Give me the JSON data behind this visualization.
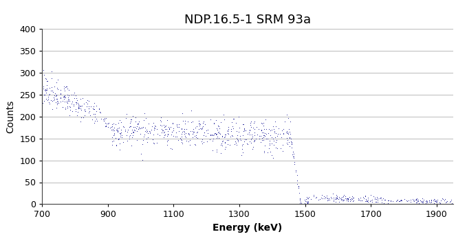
{
  "title": "NDP.16.5-1 SRM 93a",
  "xlabel": "Energy (keV)",
  "ylabel": "Counts",
  "xlim": [
    700,
    1950
  ],
  "ylim": [
    0,
    400
  ],
  "xticks": [
    700,
    900,
    1100,
    1300,
    1500,
    1700,
    1900
  ],
  "yticks": [
    0,
    50,
    100,
    150,
    200,
    250,
    300,
    350,
    400
  ],
  "dot_color": "#00008B",
  "bg_color": "#ffffff",
  "title_fontsize": 13,
  "label_fontsize": 10,
  "tick_fontsize": 9,
  "seed": 42,
  "n1": 110,
  "n2": 60,
  "n3": 20,
  "n4": 500,
  "n5": 50,
  "n6": 220
}
